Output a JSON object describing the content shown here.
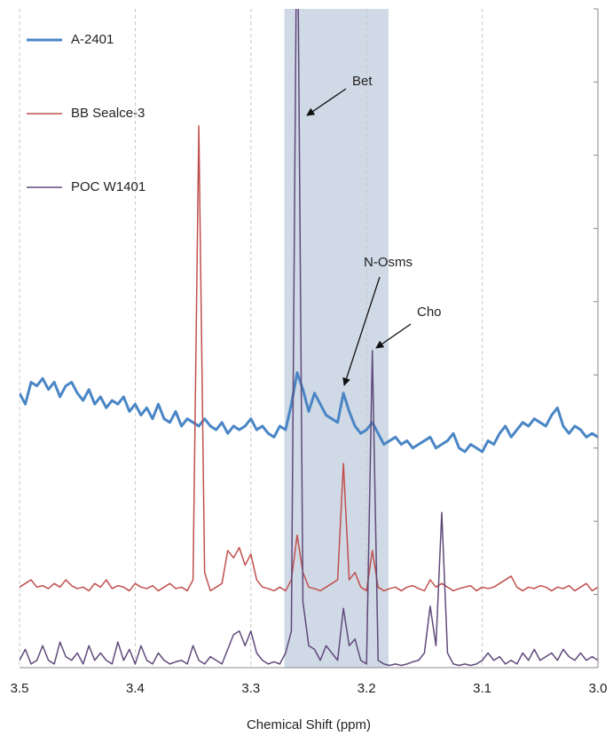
{
  "chart_data": {
    "type": "line",
    "x_label": "Chemical Shift (ppm)",
    "xlim": [
      3.5,
      3.0
    ],
    "xticks": [
      3.5,
      3.4,
      3.3,
      3.2,
      3.1,
      {
        "value": 3,
        "label": "3.0"
      }
    ],
    "ylim": [
      0,
      9
    ],
    "yticks": [
      0,
      1,
      2,
      3,
      4,
      5,
      6,
      7,
      8,
      9
    ],
    "grid": true,
    "legend": "top-left",
    "highlight_range": [
      3.271,
      3.181
    ],
    "annotations": [
      "Bet",
      "N-Osms",
      "Cho"
    ],
    "x": [
      3.5,
      3.495,
      3.49,
      3.485,
      3.48,
      3.475,
      3.47,
      3.465,
      3.46,
      3.455,
      3.45,
      3.445,
      3.44,
      3.435,
      3.43,
      3.425,
      3.42,
      3.415,
      3.41,
      3.405,
      3.4,
      3.395,
      3.39,
      3.385,
      3.38,
      3.375,
      3.37,
      3.365,
      3.36,
      3.355,
      3.35,
      3.345,
      3.34,
      3.335,
      3.33,
      3.325,
      3.32,
      3.315,
      3.31,
      3.305,
      3.3,
      3.295,
      3.29,
      3.285,
      3.28,
      3.275,
      3.27,
      3.265,
      3.26,
      3.255,
      3.25,
      3.245,
      3.24,
      3.235,
      3.23,
      3.225,
      3.22,
      3.215,
      3.21,
      3.205,
      3.2,
      3.195,
      3.19,
      3.185,
      3.18,
      3.175,
      3.17,
      3.165,
      3.16,
      3.155,
      3.15,
      3.145,
      3.14,
      3.135,
      3.13,
      3.125,
      3.12,
      3.115,
      3.11,
      3.105,
      3.1,
      3.095,
      3.09,
      3.085,
      3.08,
      3.075,
      3.07,
      3.065,
      3.06,
      3.055,
      3.05,
      3.045,
      3.04,
      3.035,
      3.03,
      3.025,
      3.02,
      3.015,
      3.01,
      3.005,
      3.0
    ],
    "series": [
      {
        "name": "A-2401",
        "color": "#4a86c5",
        "width": 3,
        "values": [
          3.75,
          3.6,
          3.9,
          3.85,
          3.95,
          3.8,
          3.9,
          3.7,
          3.85,
          3.9,
          3.75,
          3.65,
          3.8,
          3.6,
          3.7,
          3.55,
          3.65,
          3.6,
          3.7,
          3.5,
          3.6,
          3.45,
          3.55,
          3.4,
          3.6,
          3.4,
          3.35,
          3.5,
          3.3,
          3.4,
          3.35,
          3.3,
          3.4,
          3.3,
          3.25,
          3.35,
          3.2,
          3.3,
          3.25,
          3.3,
          3.4,
          3.25,
          3.3,
          3.2,
          3.15,
          3.3,
          3.25,
          3.6,
          4.03,
          3.8,
          3.5,
          3.75,
          3.6,
          3.45,
          3.4,
          3.35,
          3.75,
          3.5,
          3.3,
          3.2,
          3.25,
          3.35,
          3.2,
          3.05,
          3.1,
          3.15,
          3.05,
          3.1,
          3.0,
          3.05,
          3.1,
          3.15,
          3.0,
          3.05,
          3.1,
          3.2,
          3.0,
          2.95,
          3.05,
          3.0,
          2.95,
          3.1,
          3.05,
          3.2,
          3.3,
          3.15,
          3.25,
          3.35,
          3.3,
          3.4,
          3.35,
          3.3,
          3.45,
          3.55,
          3.3,
          3.2,
          3.3,
          3.25,
          3.15,
          3.2,
          3.15
        ]
      },
      {
        "name": "BB Sealce-3",
        "color": "#c0504d",
        "width": 1.5,
        "values": [
          1.1,
          1.15,
          1.2,
          1.1,
          1.12,
          1.08,
          1.15,
          1.1,
          1.2,
          1.12,
          1.08,
          1.1,
          1.05,
          1.15,
          1.1,
          1.2,
          1.08,
          1.12,
          1.1,
          1.05,
          1.15,
          1.1,
          1.08,
          1.12,
          1.05,
          1.1,
          1.15,
          1.08,
          1.1,
          1.05,
          1.2,
          7.4,
          1.3,
          1.05,
          1.1,
          1.15,
          1.6,
          1.5,
          1.64,
          1.4,
          1.55,
          1.2,
          1.1,
          1.08,
          1.05,
          1.1,
          1.05,
          1.2,
          1.81,
          1.3,
          1.1,
          1.08,
          1.05,
          1.1,
          1.15,
          1.2,
          2.79,
          1.2,
          1.3,
          1.1,
          1.05,
          1.6,
          1.1,
          1.05,
          1.08,
          1.1,
          1.05,
          1.1,
          1.12,
          1.08,
          1.05,
          1.2,
          1.1,
          1.15,
          1.1,
          1.05,
          1.08,
          1.1,
          1.12,
          1.05,
          1.1,
          1.08,
          1.1,
          1.15,
          1.2,
          1.25,
          1.1,
          1.05,
          1.1,
          1.08,
          1.12,
          1.1,
          1.05,
          1.1,
          1.08,
          1.12,
          1.05,
          1.1,
          1.15,
          1.05,
          1.1
        ]
      },
      {
        "name": "POC W1401",
        "color": "#604a7b",
        "width": 1.5,
        "values": [
          0.1,
          0.25,
          0.05,
          0.1,
          0.3,
          0.1,
          0.05,
          0.35,
          0.15,
          0.1,
          0.2,
          0.05,
          0.3,
          0.1,
          0.2,
          0.1,
          0.05,
          0.35,
          0.1,
          0.25,
          0.05,
          0.3,
          0.1,
          0.05,
          0.2,
          0.1,
          0.05,
          0.08,
          0.1,
          0.05,
          0.3,
          0.1,
          0.05,
          0.15,
          0.1,
          0.05,
          0.25,
          0.45,
          0.5,
          0.3,
          0.5,
          0.2,
          0.1,
          0.05,
          0.08,
          0.05,
          0.2,
          0.5,
          11,
          0.9,
          0.3,
          0.25,
          0.1,
          0.3,
          0.2,
          0.1,
          0.81,
          0.3,
          0.39,
          0.1,
          0.05,
          4.33,
          0.1,
          0.05,
          0.03,
          0.05,
          0.03,
          0.05,
          0.08,
          0.1,
          0.2,
          0.84,
          0.3,
          2.12,
          0.2,
          0.05,
          0.03,
          0.05,
          0.03,
          0.05,
          0.1,
          0.2,
          0.1,
          0.15,
          0.05,
          0.1,
          0.05,
          0.2,
          0.1,
          0.25,
          0.1,
          0.15,
          0.2,
          0.1,
          0.25,
          0.15,
          0.1,
          0.2,
          0.1,
          0.15,
          0.1
        ]
      }
    ]
  }
}
